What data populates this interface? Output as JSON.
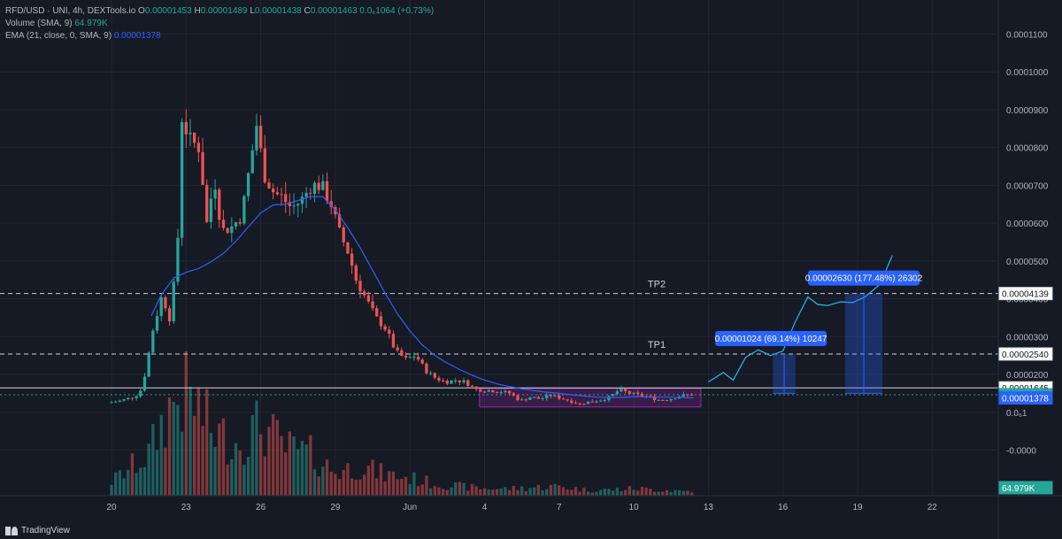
{
  "legend": {
    "symbol": "RFD/USD · UNI, 4h, DEXTools.io",
    "o_label": "O",
    "o_value": "0.00001453",
    "h_label": "H",
    "h_value": "0.00001489",
    "l_label": "L",
    "l_value": "0.00001438",
    "c_label": "C",
    "c_value": "0.00001463",
    "change": "0.0₆1064 (+0.73%)",
    "volume_label": "Volume (SMA, 9)",
    "volume_value": "64.979K",
    "ema_label": "EMA (21, close, 0, SMA, 9)",
    "ema_value": "0.00001378"
  },
  "footer": {
    "brand": "TradingView",
    "icon": "tradingview-logo-icon"
  },
  "colors": {
    "up": "#26a69a",
    "down": "#ef5350",
    "ema": "#2962ff",
    "bg": "#161a25",
    "grid": "#232632",
    "zone": "#9c27b0",
    "target": "#2962ff"
  },
  "chart_data": {
    "type": "candlestick",
    "price_axis": {
      "ticks": [
        "0.0001100",
        "0.0001000",
        "0.0000900",
        "0.0000800",
        "0.0000700",
        "0.0000600",
        "0.0000500",
        "0.0000400",
        "0.0000300",
        "0.0000200",
        "0.0₆1",
        "-0.0000"
      ],
      "tick_values": [
        0.00011,
        0.0001,
        9e-05,
        8e-05,
        7e-05,
        6e-05,
        5e-05,
        4e-05,
        3e-05,
        2e-05,
        1e-05,
        0
      ],
      "markers": [
        {
          "label": "0.00004139",
          "value": 4.139e-05,
          "style": "outline"
        },
        {
          "label": "0.00002540",
          "value": 2.54e-05,
          "style": "outline"
        },
        {
          "label": "0.00001645",
          "value": 1.645e-05,
          "style": "outline"
        },
        {
          "label": "0.00001463",
          "value": 1.463e-05,
          "style": "up"
        },
        {
          "label": "0.00001378",
          "value": 1.378e-05,
          "style": "ema"
        },
        {
          "label": "64.979K",
          "value": 0,
          "style": "volume"
        }
      ]
    },
    "time_axis": {
      "ticks": [
        "20",
        "23",
        "26",
        "29",
        "Jun",
        "4",
        "7",
        "10",
        "13",
        "16",
        "19",
        "22"
      ],
      "tick_days": [
        0,
        3,
        6,
        9,
        12,
        15,
        18,
        21,
        24,
        27,
        30,
        33
      ]
    },
    "levels": [
      {
        "label": "TP2",
        "value": 4.139e-05,
        "style": "dashed"
      },
      {
        "label": "TP1",
        "value": 2.54e-05,
        "style": "dashed"
      },
      {
        "label": "",
        "value": 1.645e-05,
        "style": "solid"
      },
      {
        "label": "",
        "value": 1.463e-05,
        "style": "dotted"
      }
    ],
    "zone": {
      "day_start": 14.8,
      "day_end": 23.7,
      "top": 1.63e-05,
      "bottom": 1.14e-05
    },
    "targets": [
      {
        "label": "0.00001024 (69.14%) 10247",
        "day_start": 26.6,
        "day_end": 27.5,
        "from": 1.5e-05,
        "to": 2.54e-05
      },
      {
        "label": "0.00002630 (177.48%) 26302",
        "day_start": 29.5,
        "day_end": 31.0,
        "from": 1.5e-05,
        "to": 4.139e-05
      }
    ],
    "projection": [
      [
        24.0,
        1.8e-05
      ],
      [
        24.6,
        2.05e-05
      ],
      [
        25.0,
        1.85e-05
      ],
      [
        25.5,
        2.45e-05
      ],
      [
        26.0,
        2.65e-05
      ],
      [
        26.5,
        2.5e-05
      ],
      [
        27.0,
        2.62e-05
      ],
      [
        27.5,
        3.4e-05
      ],
      [
        28.0,
        4.05e-05
      ],
      [
        28.4,
        3.85e-05
      ],
      [
        28.8,
        3.82e-05
      ],
      [
        29.3,
        3.92e-05
      ],
      [
        29.8,
        3.9e-05
      ],
      [
        30.3,
        4.05e-05
      ],
      [
        30.9,
        4.38e-05
      ],
      [
        31.4,
        5.15e-05
      ]
    ],
    "ema": [
      [
        1.6,
        3.55e-05
      ],
      [
        2.0,
        4.1e-05
      ],
      [
        2.5,
        4.55e-05
      ],
      [
        3.0,
        4.7e-05
      ],
      [
        3.5,
        4.8e-05
      ],
      [
        4.0,
        4.98e-05
      ],
      [
        4.5,
        5.2e-05
      ],
      [
        5.0,
        5.52e-05
      ],
      [
        5.5,
        5.9e-05
      ],
      [
        6.0,
        6.27e-05
      ],
      [
        6.5,
        6.48e-05
      ],
      [
        7.0,
        6.5e-05
      ],
      [
        7.5,
        6.6e-05
      ],
      [
        8.0,
        6.7e-05
      ],
      [
        8.5,
        6.7e-05
      ],
      [
        9.0,
        6.35e-05
      ],
      [
        9.5,
        5.88e-05
      ],
      [
        10.0,
        5.35e-05
      ],
      [
        10.5,
        4.75e-05
      ],
      [
        11.0,
        4.15e-05
      ],
      [
        11.5,
        3.6e-05
      ],
      [
        12.0,
        3.15e-05
      ],
      [
        12.5,
        2.78e-05
      ],
      [
        13.0,
        2.5e-05
      ],
      [
        13.5,
        2.3e-05
      ],
      [
        14.0,
        2.13e-05
      ],
      [
        14.5,
        1.98e-05
      ],
      [
        15.0,
        1.85e-05
      ],
      [
        15.5,
        1.75e-05
      ],
      [
        16.0,
        1.68e-05
      ],
      [
        16.5,
        1.62e-05
      ],
      [
        17.0,
        1.57e-05
      ],
      [
        17.5,
        1.53e-05
      ],
      [
        18.0,
        1.5e-05
      ],
      [
        18.5,
        1.46e-05
      ],
      [
        19.0,
        1.43e-05
      ],
      [
        19.5,
        1.4e-05
      ],
      [
        20.0,
        1.39e-05
      ],
      [
        20.5,
        1.39e-05
      ],
      [
        21.0,
        1.41e-05
      ],
      [
        21.5,
        1.41e-05
      ],
      [
        22.0,
        1.4e-05
      ],
      [
        22.5,
        1.4e-05
      ],
      [
        23.0,
        1.39e-05
      ],
      [
        23.4,
        1.38e-05
      ]
    ],
    "anchors": [
      [
        0.0,
        1.25e-05
      ],
      [
        0.5,
        1.3e-05
      ],
      [
        1.0,
        1.4e-05
      ],
      [
        1.3,
        1.5e-05
      ],
      [
        1.55,
        2.1e-05
      ],
      [
        1.8,
        3.1e-05
      ],
      [
        2.2,
        4.1e-05
      ],
      [
        2.5,
        3.5e-05
      ],
      [
        2.8,
        5e-05
      ],
      [
        3.0,
        8.8e-05
      ],
      [
        3.3,
        8.2e-05
      ],
      [
        3.7,
        8e-05
      ],
      [
        4.0,
        6e-05
      ],
      [
        4.3,
        7.2e-05
      ],
      [
        4.6,
        5.8e-05
      ],
      [
        5.0,
        5.9e-05
      ],
      [
        5.4,
        6.2e-05
      ],
      [
        5.8,
        7.8e-05
      ],
      [
        6.0,
        8.6e-05
      ],
      [
        6.3,
        7.3e-05
      ],
      [
        6.7,
        6.8e-05
      ],
      [
        7.0,
        6.7e-05
      ],
      [
        7.4,
        6.4e-05
      ],
      [
        7.8,
        6.6e-05
      ],
      [
        8.2,
        7e-05
      ],
      [
        8.6,
        7e-05
      ],
      [
        9.0,
        6.5e-05
      ],
      [
        9.3,
        5.8e-05
      ],
      [
        9.7,
        5.2e-05
      ],
      [
        10.0,
        4.5e-05
      ],
      [
        10.4,
        4e-05
      ],
      [
        10.8,
        3.5e-05
      ],
      [
        11.2,
        3.2e-05
      ],
      [
        11.6,
        2.6e-05
      ],
      [
        12.0,
        2.4e-05
      ],
      [
        12.4,
        2.5e-05
      ],
      [
        12.8,
        2.1e-05
      ],
      [
        13.2,
        1.9e-05
      ],
      [
        13.6,
        1.8e-05
      ],
      [
        14.0,
        1.85e-05
      ],
      [
        14.4,
        1.8e-05
      ],
      [
        14.8,
        1.6e-05
      ],
      [
        15.3,
        1.58e-05
      ],
      [
        15.8,
        1.55e-05
      ],
      [
        16.2,
        1.5e-05
      ],
      [
        16.6,
        1.3e-05
      ],
      [
        17.0,
        1.4e-05
      ],
      [
        17.4,
        1.35e-05
      ],
      [
        17.8,
        1.45e-05
      ],
      [
        18.2,
        1.38e-05
      ],
      [
        18.6,
        1.3e-05
      ],
      [
        19.0,
        1.22e-05
      ],
      [
        19.4,
        1.28e-05
      ],
      [
        19.8,
        1.32e-05
      ],
      [
        20.2,
        1.4e-05
      ],
      [
        20.6,
        1.6e-05
      ],
      [
        21.0,
        1.5e-05
      ],
      [
        21.4,
        1.45e-05
      ],
      [
        21.8,
        1.4e-05
      ],
      [
        22.2,
        1.32e-05
      ],
      [
        22.6,
        1.35e-05
      ],
      [
        23.0,
        1.43e-05
      ],
      [
        23.35,
        1.46e-05
      ]
    ],
    "volume_profile": [
      [
        0,
        0.12
      ],
      [
        1.5,
        0.35
      ],
      [
        2,
        0.6
      ],
      [
        2.5,
        0.8
      ],
      [
        3,
        0.85
      ],
      [
        3.5,
        0.75
      ],
      [
        4,
        0.55
      ],
      [
        5,
        0.45
      ],
      [
        6,
        0.6
      ],
      [
        7,
        0.4
      ],
      [
        8,
        0.35
      ],
      [
        9,
        0.2
      ],
      [
        10,
        0.25
      ],
      [
        11,
        0.18
      ],
      [
        12,
        0.15
      ],
      [
        13,
        0.1
      ],
      [
        14,
        0.08
      ],
      [
        15,
        0.06
      ],
      [
        16,
        0.06
      ],
      [
        17,
        0.07
      ],
      [
        18,
        0.08
      ],
      [
        19,
        0.05
      ],
      [
        20,
        0.05
      ],
      [
        21,
        0.06
      ],
      [
        22,
        0.05
      ],
      [
        23,
        0.04
      ]
    ]
  }
}
